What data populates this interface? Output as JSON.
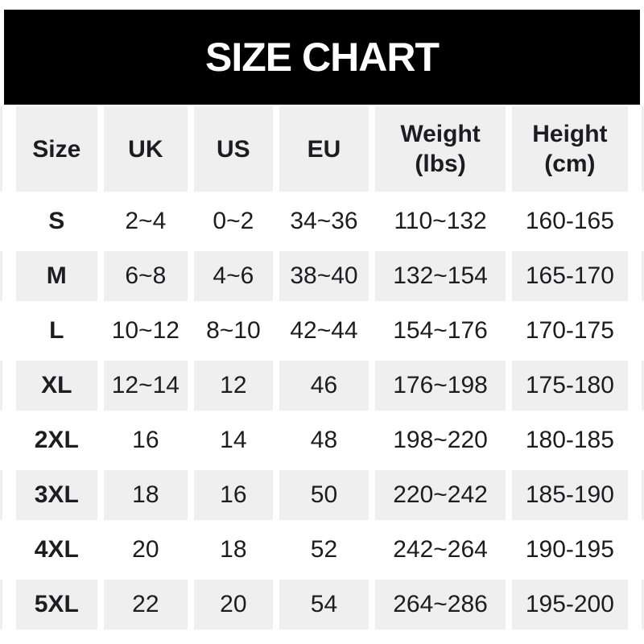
{
  "banner": {
    "title": "SIZE CHART"
  },
  "table": {
    "columns": [
      {
        "label": "Size",
        "sub": ""
      },
      {
        "label": "UK",
        "sub": ""
      },
      {
        "label": "US",
        "sub": ""
      },
      {
        "label": "EU",
        "sub": ""
      },
      {
        "label": "Weight",
        "sub": "(lbs)"
      },
      {
        "label": "Height",
        "sub": "(cm)"
      }
    ],
    "rows": [
      {
        "size": "S",
        "uk": "2~4",
        "us": "0~2",
        "eu": "34~36",
        "weight": "110~132",
        "height": "160-165"
      },
      {
        "size": "M",
        "uk": "6~8",
        "us": "4~6",
        "eu": "38~40",
        "weight": "132~154",
        "height": "165-170"
      },
      {
        "size": "L",
        "uk": "10~12",
        "us": "8~10",
        "eu": "42~44",
        "weight": "154~176",
        "height": "170-175"
      },
      {
        "size": "XL",
        "uk": "12~14",
        "us": "12",
        "eu": "46",
        "weight": "176~198",
        "height": "175-180"
      },
      {
        "size": "2XL",
        "uk": "16",
        "us": "14",
        "eu": "48",
        "weight": "198~220",
        "height": "180-185"
      },
      {
        "size": "3XL",
        "uk": "18",
        "us": "16",
        "eu": "50",
        "weight": "220~242",
        "height": "185-190"
      },
      {
        "size": "4XL",
        "uk": "20",
        "us": "18",
        "eu": "52",
        "weight": "242~264",
        "height": "190-195"
      },
      {
        "size": "5XL",
        "uk": "22",
        "us": "20",
        "eu": "54",
        "weight": "264~286",
        "height": "195-200"
      }
    ]
  },
  "colors": {
    "banner_bg": "#000000",
    "banner_text": "#ffffff",
    "stripe_bg": "#efefef",
    "row_bg": "#ffffff",
    "text": "#1d1d1f"
  },
  "chart_data": {
    "type": "table",
    "title": "SIZE CHART",
    "columns": [
      "Size",
      "UK",
      "US",
      "EU",
      "Weight (lbs)",
      "Height (cm)"
    ],
    "rows": [
      [
        "S",
        "2~4",
        "0~2",
        "34~36",
        "110~132",
        "160-165"
      ],
      [
        "M",
        "6~8",
        "4~6",
        "38~40",
        "132~154",
        "165-170"
      ],
      [
        "L",
        "10~12",
        "8~10",
        "42~44",
        "154~176",
        "170-175"
      ],
      [
        "XL",
        "12~14",
        "12",
        "46",
        "176~198",
        "175-180"
      ],
      [
        "2XL",
        "16",
        "14",
        "48",
        "198~220",
        "180-185"
      ],
      [
        "3XL",
        "18",
        "16",
        "50",
        "220~242",
        "185-190"
      ],
      [
        "4XL",
        "20",
        "18",
        "52",
        "242~264",
        "190-195"
      ],
      [
        "5XL",
        "22",
        "20",
        "54",
        "264~286",
        "195-200"
      ]
    ],
    "layout": {
      "header_stripe": true,
      "alternating_rows": true,
      "grid": false
    }
  }
}
